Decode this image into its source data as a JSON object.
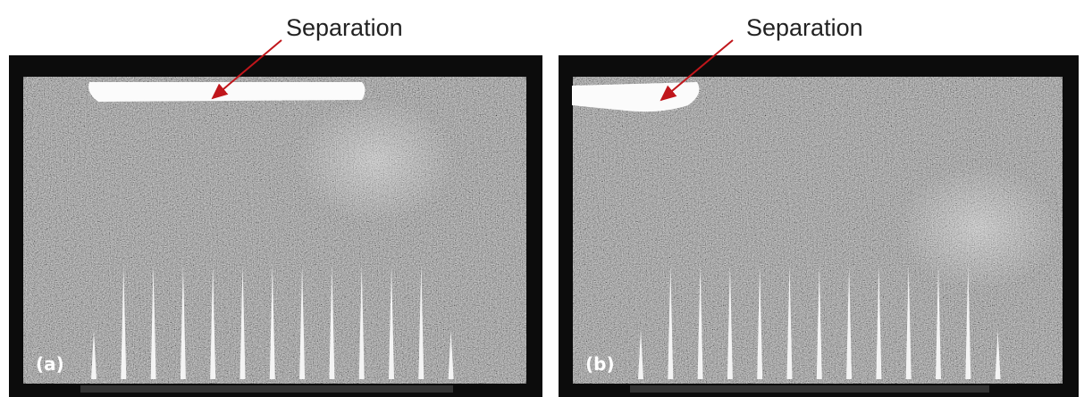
{
  "panels": [
    {
      "label": "(a)",
      "annotation": "Separation"
    },
    {
      "label": "(b)",
      "annotation": "Separation"
    }
  ]
}
